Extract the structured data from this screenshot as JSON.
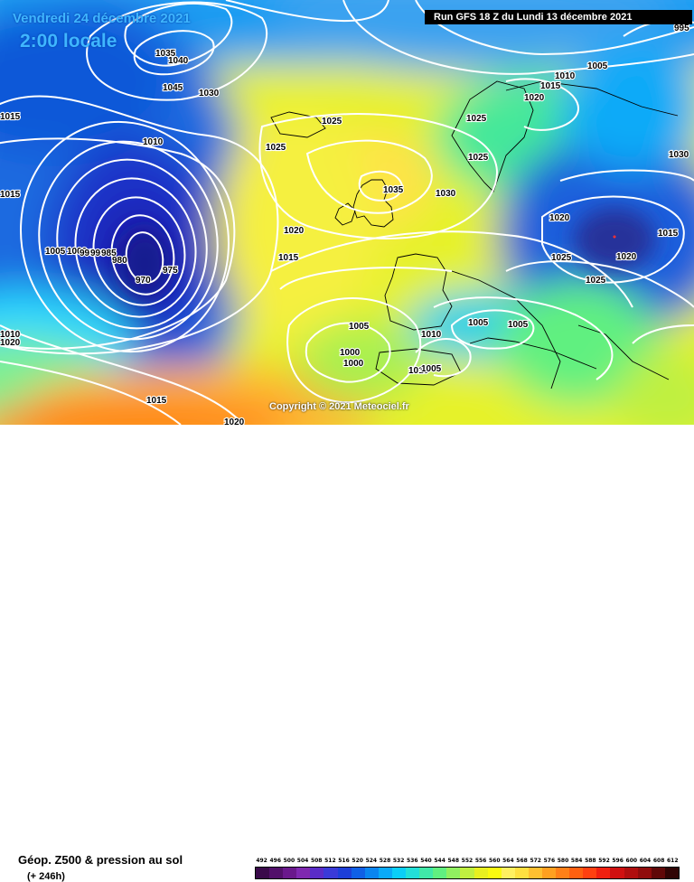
{
  "header": {
    "date": "Vendredi 24 décembre 2021",
    "time": "2:00 locale",
    "run": "Run GFS 18 Z du Lundi 13 décembre 2021"
  },
  "copyright": "Copyright © 2021 Meteociel.fr",
  "footer": {
    "title": "Géop. Z500 & pression au sol",
    "subtitle": "(+ 246h)"
  },
  "legend": {
    "values": [
      "492",
      "496",
      "500",
      "504",
      "508",
      "512",
      "516",
      "520",
      "524",
      "528",
      "532",
      "536",
      "540",
      "544",
      "548",
      "552",
      "556",
      "560",
      "564",
      "568",
      "572",
      "576",
      "580",
      "584",
      "588",
      "592",
      "596",
      "600",
      "604",
      "608",
      "612"
    ],
    "colors": [
      "#3a0a4a",
      "#52106a",
      "#6a188c",
      "#7f28b0",
      "#5a2cc8",
      "#3a3ad8",
      "#1d3fd9",
      "#1060e6",
      "#0a85f0",
      "#0aaaf8",
      "#0acff8",
      "#22e0d8",
      "#40e8a8",
      "#60f080",
      "#90f060",
      "#c0f040",
      "#e8f020",
      "#fafa10",
      "#fff060",
      "#ffe040",
      "#ffc030",
      "#ffa020",
      "#ff8018",
      "#ff6010",
      "#ff4010",
      "#f02010",
      "#d01010",
      "#b00e0e",
      "#900c0c",
      "#600808",
      "#300404"
    ]
  },
  "map_labels": {
    "isobars": [
      "1035",
      "1040",
      "1045",
      "1030",
      "1010",
      "1025",
      "1015",
      "1025",
      "1035",
      "1030",
      "1020",
      "1015",
      "1005",
      "1000",
      "995",
      "990",
      "985",
      "980",
      "975",
      "970",
      "1020",
      "1015",
      "1025",
      "1020",
      "1010",
      "1005",
      "1025",
      "1030",
      "1015",
      "1020",
      "1025",
      "1005",
      "1005",
      "1010",
      "1000",
      "1000",
      "1010",
      "1005",
      "1025",
      "1020",
      "1015",
      "1020",
      "995",
      "1005",
      "1010",
      "1015"
    ]
  }
}
